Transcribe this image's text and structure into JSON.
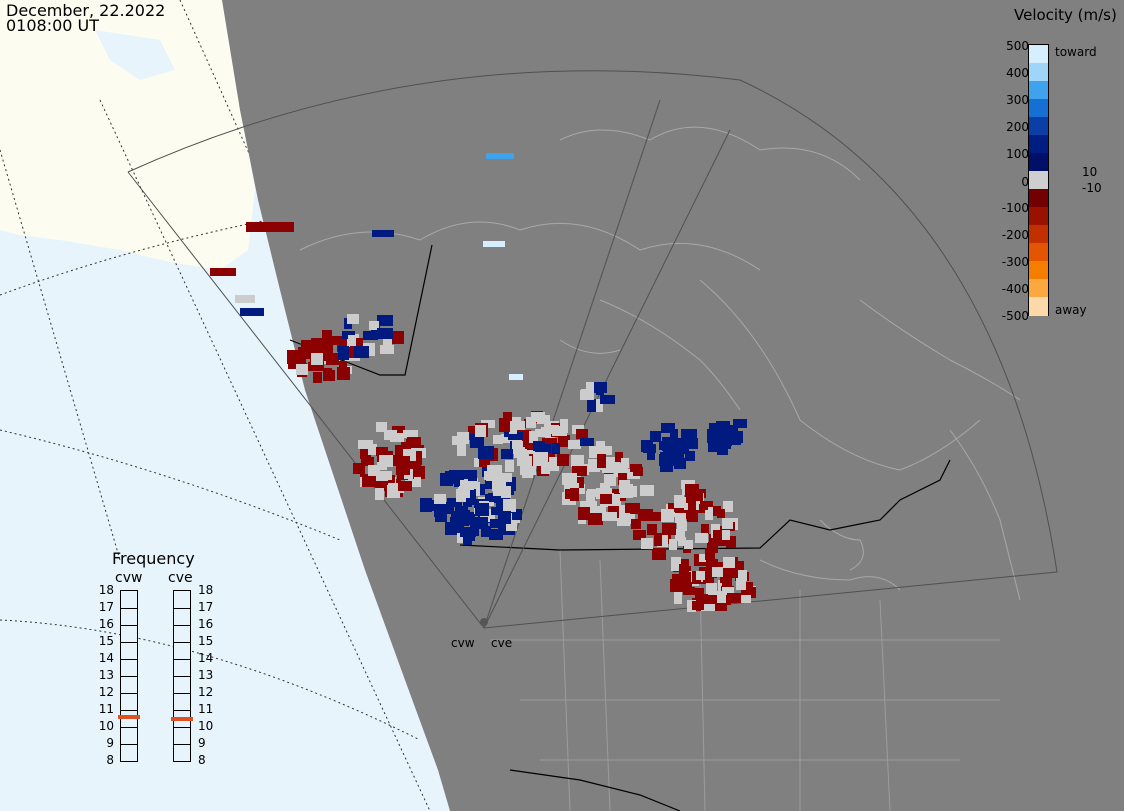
{
  "title": {
    "date": "December, 22.2022",
    "time": "0108:00 UT"
  },
  "colorbar": {
    "title": "Velocity (m/s)",
    "ticks": [
      "500",
      "400",
      "300",
      "200",
      "100",
      "10",
      "0",
      "-10",
      "-100",
      "-200",
      "-300",
      "-400",
      "-500"
    ],
    "toward_label": "toward",
    "away_label": "away",
    "colors": [
      "#d6efff",
      "#9fd6f8",
      "#3ea2ec",
      "#1670d4",
      "#0c3fa6",
      "#001e82",
      "#000f68",
      "#cfcfcf",
      "#720000",
      "#991200",
      "#c23000",
      "#e35500",
      "#f57e00",
      "#fca840",
      "#fdd8a8"
    ]
  },
  "frequency": {
    "title": "Frequency",
    "radars": [
      "cvw",
      "cve"
    ],
    "scale_ticks": [
      "18",
      "17",
      "16",
      "15",
      "14",
      "13",
      "12",
      "11",
      "10",
      "9",
      "8"
    ],
    "marker_mhz": [
      10.6,
      10.5
    ],
    "marker_color": "#e05020"
  },
  "radar_labels": [
    "cvw",
    "cve"
  ],
  "colors": {
    "ocean": "#e8f4fc",
    "land_lit": "#fcfdf0",
    "night": "#808080",
    "border": "#000000",
    "grid": "#9a9a9a",
    "toward_dark": "#001a80",
    "away_dark": "#8b0000",
    "ground_scatter": "#cccccc"
  }
}
